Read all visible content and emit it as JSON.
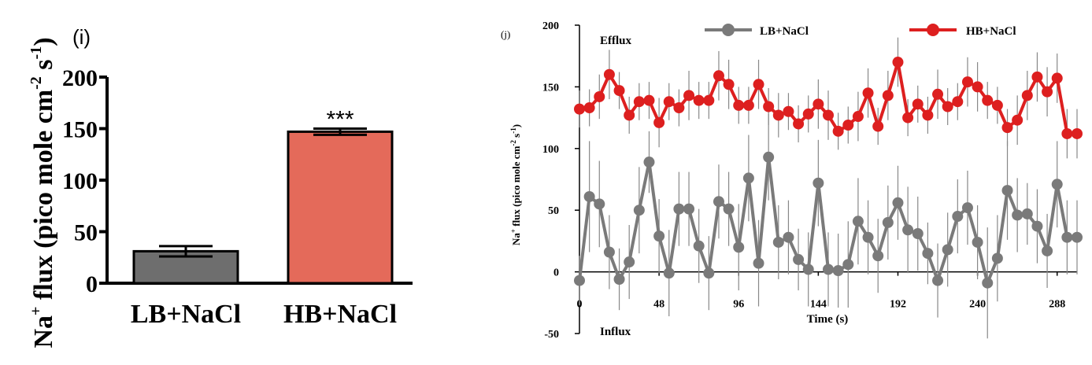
{
  "colors": {
    "lb_bar": "#6e6e6e",
    "hb_bar": "#e46a5a",
    "lb_line": "#7a7a7a",
    "hb_line": "#dd1f1f",
    "error": "#888888",
    "axis": "#000000"
  },
  "chart_data": [
    {
      "type": "bar",
      "panel_label": "(i)",
      "ylabel_prefix": "Na",
      "ylabel_sup": "+",
      "ylabel_rest": " flux (pico mole cm",
      "ylabel_sup2": "-2",
      "ylabel_mid": " s",
      "ylabel_sup3": "-1",
      "ylabel_end": ")",
      "categories": [
        "LB+NaCl",
        "HB+NaCl"
      ],
      "values": [
        31,
        147
      ],
      "errors": [
        5,
        3
      ],
      "significance": [
        "",
        "***"
      ],
      "ylim": [
        0,
        200
      ],
      "yticks": [
        0,
        50,
        100,
        150,
        200
      ],
      "ytick_labels": [
        "0",
        "50",
        "100",
        "150",
        "200"
      ]
    },
    {
      "type": "line",
      "panel_label": "(j)",
      "xlabel": "Time (s)",
      "ylabel_prefix": "Na",
      "ylabel_sup": "+",
      "ylabel_rest": " flux (pico mole cm",
      "ylabel_sup2": "-2",
      "ylabel_mid": " s",
      "ylabel_sup3": "-1",
      "ylabel_end": ")",
      "xlim": [
        0,
        300
      ],
      "ylim": [
        -50,
        200
      ],
      "xticks": [
        0,
        48,
        96,
        144,
        192,
        240,
        288
      ],
      "xtick_labels": [
        "0",
        "48",
        "96",
        "144",
        "192",
        "240",
        "288"
      ],
      "yticks": [
        -50,
        0,
        50,
        100,
        150,
        200
      ],
      "ytick_labels": [
        "-50",
        "0",
        "50",
        "100",
        "150",
        "200"
      ],
      "annotations": {
        "top": "Efflux",
        "bottom": "Influx"
      },
      "legend_placement": "top",
      "x": [
        0,
        6,
        12,
        18,
        24,
        30,
        36,
        42,
        48,
        54,
        60,
        66,
        72,
        78,
        84,
        90,
        96,
        102,
        108,
        114,
        120,
        126,
        132,
        138,
        144,
        150,
        156,
        162,
        168,
        174,
        180,
        186,
        192,
        198,
        204,
        210,
        216,
        222,
        228,
        234,
        240,
        246,
        252,
        258,
        264,
        270,
        276,
        282,
        288,
        294,
        300
      ],
      "series": [
        {
          "name": "LB+NaCl",
          "values": [
            -7,
            61,
            55,
            16,
            -6,
            8,
            50,
            89,
            29,
            -1,
            51,
            51,
            21,
            -1,
            57,
            51,
            20,
            76,
            7,
            93,
            24,
            28,
            10,
            2,
            72,
            2,
            1,
            6,
            41,
            28,
            13,
            40,
            56,
            34,
            31,
            15,
            -7,
            18,
            45,
            52,
            24,
            -9,
            11,
            66,
            46,
            47,
            37,
            17,
            71,
            28,
            28
          ],
          "errors": [
            20,
            45,
            35,
            30,
            25,
            30,
            35,
            25,
            30,
            35,
            30,
            30,
            30,
            30,
            30,
            30,
            35,
            35,
            35,
            35,
            30,
            30,
            25,
            30,
            35,
            30,
            30,
            35,
            35,
            30,
            30,
            30,
            30,
            35,
            30,
            25,
            30,
            30,
            30,
            30,
            30,
            45,
            35,
            40,
            30,
            25,
            30,
            30,
            35,
            30,
            30
          ]
        },
        {
          "name": "HB+NaCl",
          "values": [
            132,
            133,
            142,
            160,
            147,
            127,
            138,
            139,
            121,
            138,
            133,
            143,
            139,
            139,
            159,
            152,
            135,
            135,
            152,
            134,
            127,
            130,
            120,
            128,
            136,
            127,
            114,
            119,
            126,
            145,
            118,
            143,
            170,
            125,
            136,
            127,
            144,
            134,
            138,
            154,
            150,
            139,
            135,
            117,
            123,
            143,
            158,
            146,
            157,
            112,
            112
          ],
          "errors": [
            15,
            15,
            18,
            20,
            15,
            15,
            15,
            15,
            20,
            15,
            15,
            20,
            15,
            15,
            20,
            20,
            15,
            15,
            20,
            15,
            18,
            15,
            15,
            15,
            20,
            20,
            15,
            15,
            20,
            20,
            15,
            20,
            20,
            15,
            15,
            15,
            20,
            15,
            15,
            20,
            20,
            15,
            15,
            15,
            20,
            20,
            20,
            20,
            20,
            20,
            20
          ]
        }
      ]
    }
  ]
}
